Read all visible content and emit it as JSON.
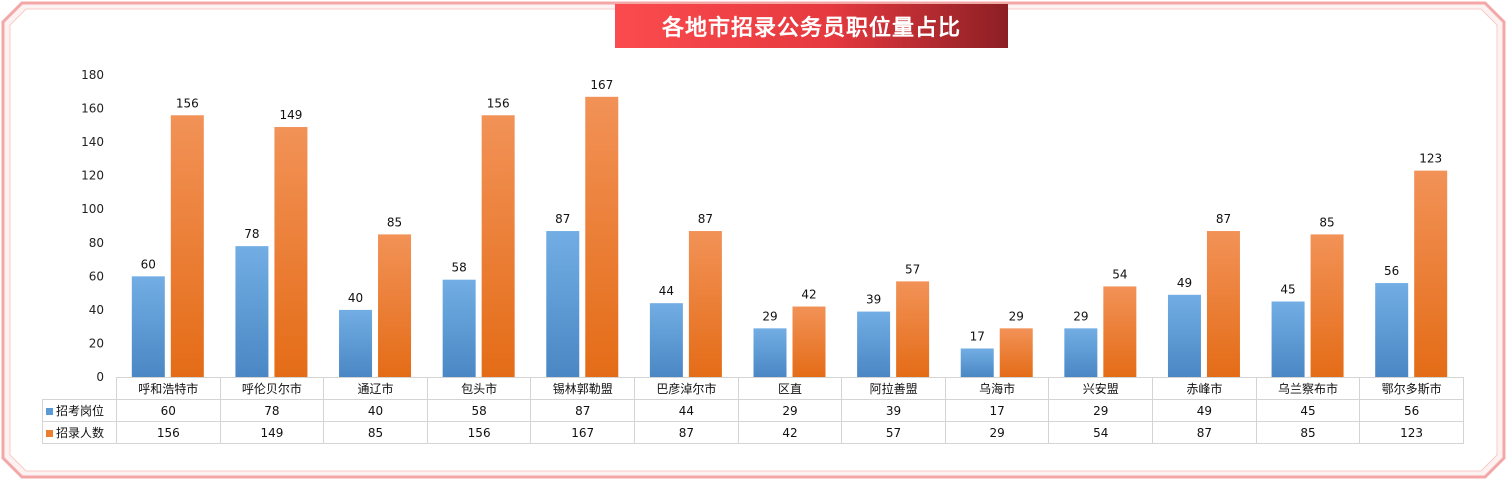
{
  "title": "各地市招录公务员职位量占比",
  "colors": {
    "frame": "#f4a7a7",
    "banner_start": "#fb4b4e",
    "banner_end": "#8c1f24",
    "series_blue": "#5b9bd5",
    "series_orange": "#ed7d31"
  },
  "chart_data": {
    "type": "bar",
    "title": "各地市招录公务员职位量占比",
    "categories": [
      "呼和浩特市",
      "呼伦贝尔市",
      "通辽市",
      "包头市",
      "锡林郭勒盟",
      "巴彦淖尔市",
      "区直",
      "阿拉善盟",
      "乌海市",
      "兴安盟",
      "赤峰市",
      "乌兰察布市",
      "鄂尔多斯市"
    ],
    "series": [
      {
        "name": "招考岗位",
        "values": [
          60,
          78,
          40,
          58,
          87,
          44,
          29,
          39,
          17,
          29,
          49,
          45,
          56
        ],
        "color": "#5b9bd5"
      },
      {
        "name": "招录人数",
        "values": [
          156,
          149,
          85,
          156,
          167,
          87,
          42,
          57,
          29,
          54,
          87,
          85,
          123
        ],
        "color": "#ed7d31"
      }
    ],
    "ylim": [
      0,
      180
    ],
    "yticks": [
      0,
      20,
      40,
      60,
      80,
      100,
      120,
      140,
      160,
      180
    ],
    "grid": false,
    "data_labels": true,
    "data_table": true
  }
}
